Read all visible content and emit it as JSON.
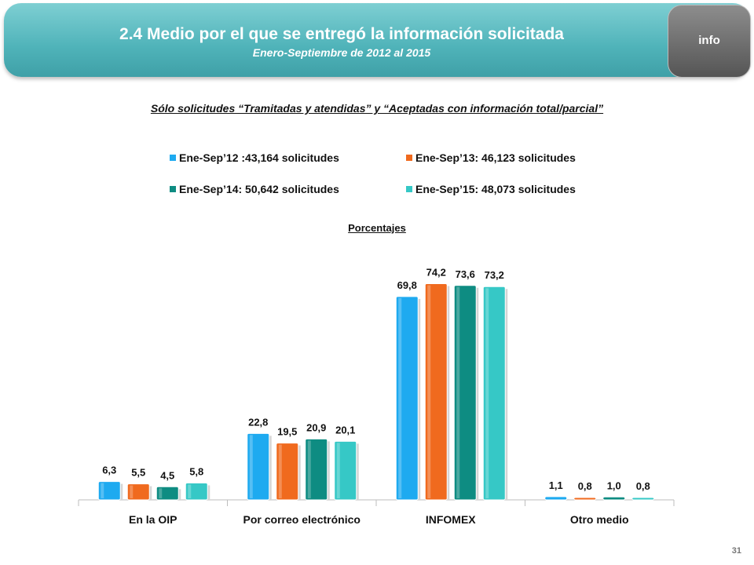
{
  "header": {
    "title": "2.4 Medio por el que se entregó la información solicitada",
    "subtitle": "Enero-Septiembre de 2012 al 2015",
    "logo_text": "info"
  },
  "subtitle": "Sólo solicitudes “Tramitadas y atendidas” y “Aceptadas con información total/parcial”",
  "unit_label": "Porcentajes",
  "page_number": "31",
  "chart_data": {
    "type": "bar",
    "title": "",
    "xlabel": "",
    "ylabel": "",
    "ylim": [
      0,
      80
    ],
    "grid": false,
    "legend_position": "top",
    "categories": [
      "En la OIP",
      "Por correo electrónico",
      "INFOMEX",
      "Otro medio"
    ],
    "series": [
      {
        "name": "Ene-Sep’12 :43,164 solicitudes",
        "color": "#1eaaf0",
        "values": [
          6.3,
          22.8,
          69.8,
          1.1
        ],
        "labels": [
          "6,3",
          "22,8",
          "69,8",
          "1,1"
        ]
      },
      {
        "name": "Ene-Sep’13: 46,123 solicitudes",
        "color": "#f06a1e",
        "values": [
          5.5,
          19.5,
          74.2,
          0.8
        ],
        "labels": [
          "5,5",
          "19,5",
          "74,2",
          "0,8"
        ]
      },
      {
        "name": "Ene-Sep’14: 50,642 solicitudes",
        "color": "#0e8c82",
        "values": [
          4.5,
          20.9,
          73.6,
          1.0
        ],
        "labels": [
          "4,5",
          "20,9",
          "73,6",
          "1,0"
        ]
      },
      {
        "name": "Ene-Sep’15: 48,073 solicitudes",
        "color": "#36c8c6",
        "values": [
          5.8,
          20.1,
          73.2,
          0.8
        ],
        "labels": [
          "5,8",
          "20,1",
          "73,2",
          "0,8"
        ]
      }
    ]
  }
}
